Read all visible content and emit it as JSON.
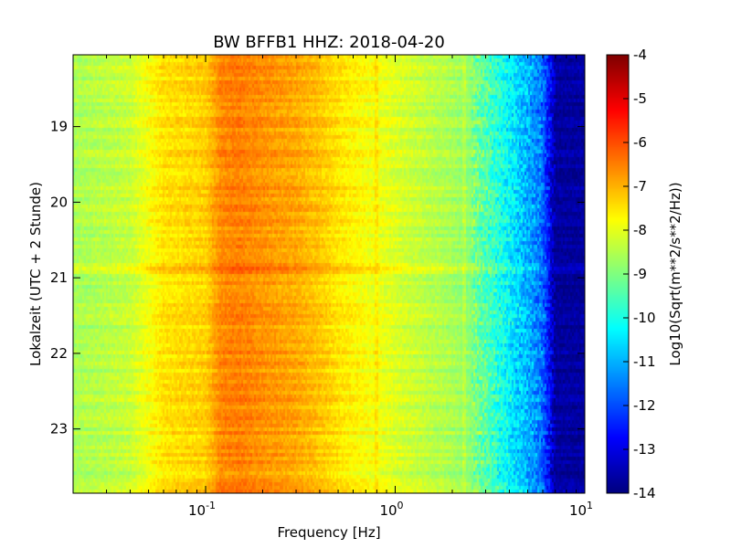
{
  "chart_data": {
    "type": "heatmap",
    "title": "BW BFFB1 HHZ: 2018-04-20",
    "xlabel": "Frequency [Hz]",
    "ylabel": "Lokalzeit (UTC + 2 Stunde)",
    "x_scale": "log",
    "xlim": [
      0.02,
      10
    ],
    "x_ticks": [
      {
        "base": "10",
        "exp": "-1",
        "value": 0.1
      },
      {
        "base": "10",
        "exp": "0",
        "value": 1
      },
      {
        "base": "10",
        "exp": "1",
        "value": 10
      }
    ],
    "ylim": [
      18.05,
      23.85
    ],
    "y_inverted": true,
    "y_ticks": [
      "19",
      "20",
      "21",
      "22",
      "23"
    ],
    "colorbar": {
      "label": "Log10(Sqrt(m**2/s**2/Hz))",
      "range": [
        -14,
        -4
      ],
      "colormap": "jet",
      "ticks": [
        "-4",
        "-5",
        "-6",
        "-7",
        "-8",
        "-9",
        "-10",
        "-11",
        "-12",
        "-13",
        "-14"
      ]
    },
    "frequency_profile": {
      "frequency_hz": [
        0.02,
        0.04,
        0.06,
        0.1,
        0.12,
        0.15,
        0.2,
        0.3,
        0.4,
        0.5,
        0.7,
        1,
        1.5,
        2,
        2.5,
        3,
        3.5,
        4,
        5,
        6,
        7,
        10
      ],
      "log10_amplitude": [
        -8.6,
        -8.3,
        -7.5,
        -7.3,
        -6.6,
        -6.5,
        -6.7,
        -6.9,
        -7.2,
        -7.5,
        -7.8,
        -8.1,
        -8.4,
        -8.6,
        -8.9,
        -9.4,
        -9.9,
        -10.3,
        -11.0,
        -11.7,
        -13.7,
        -13.7
      ]
    },
    "notable_features": [
      {
        "type": "spectral_line",
        "frequency_hz": 0.8
      },
      {
        "type": "spectral_line",
        "frequency_hz": 2.3
      },
      {
        "type": "broadband_event",
        "time": 20.9
      }
    ]
  }
}
